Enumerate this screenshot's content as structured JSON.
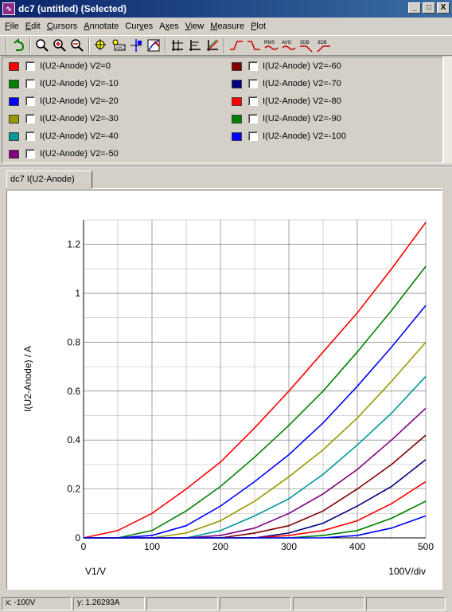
{
  "window": {
    "title": "dc7 (untitled) (Selected)",
    "icon_text": "∿",
    "buttons": {
      "minimize": "_",
      "maximize": "□",
      "close": "X"
    }
  },
  "menu": [
    {
      "label": "File",
      "u": "F"
    },
    {
      "label": "Edit",
      "u": "E"
    },
    {
      "label": "Cursors",
      "u": "C"
    },
    {
      "label": "Annotate",
      "u": "A"
    },
    {
      "label": "Curves",
      "u": "v"
    },
    {
      "label": "Axes",
      "u": "x"
    },
    {
      "label": "View",
      "u": "V"
    },
    {
      "label": "Measure",
      "u": "M"
    },
    {
      "label": "Plot",
      "u": "P"
    }
  ],
  "toolbar": {
    "icons": [
      "undo-icon",
      "zoom-full-icon",
      "zoom-in-icon",
      "zoom-out-icon",
      "cursor-icon",
      "annotate-abc-icon",
      "add-cursor-icon",
      "curve-pick-icon",
      "axes-icon",
      "grid-icon",
      "log-scale-icon",
      "rise-icon",
      "fall-icon",
      "rms-icon",
      "avg-icon",
      "3db-low-icon",
      "3db-high-icon"
    ],
    "rms_label": "RMS",
    "avg_label": "AVG",
    "db3_label": "3DB",
    "db3b_label": "3DB"
  },
  "legend": {
    "left": [
      {
        "label": "I(U2-Anode) V2=0",
        "color": "#ff0000"
      },
      {
        "label": "I(U2-Anode) V2=-10",
        "color": "#008000"
      },
      {
        "label": "I(U2-Anode) V2=-20",
        "color": "#0000ff"
      },
      {
        "label": "I(U2-Anode) V2=-30",
        "color": "#999900"
      },
      {
        "label": "I(U2-Anode) V2=-40",
        "color": "#009999"
      },
      {
        "label": "I(U2-Anode) V2=-50",
        "color": "#800080"
      }
    ],
    "right": [
      {
        "label": "I(U2-Anode) V2=-60",
        "color": "#800000"
      },
      {
        "label": "I(U2-Anode) V2=-70",
        "color": "#000080"
      },
      {
        "label": "I(U2-Anode) V2=-80",
        "color": "#ff0000"
      },
      {
        "label": "I(U2-Anode) V2=-90",
        "color": "#008000"
      },
      {
        "label": "I(U2-Anode) V2=-100",
        "color": "#0000ff"
      }
    ]
  },
  "tab": {
    "label": "dc7 I(U2-Anode)"
  },
  "status": {
    "x": "x: -100V",
    "y": "y: 1.26293A"
  },
  "chart_data": {
    "type": "line",
    "xlabel": "V1/V",
    "ylabel": "I(U2-Anode) / A",
    "x_scale_note": "100V/div",
    "xlim": [
      0,
      500
    ],
    "ylim": [
      0,
      1.3
    ],
    "x_ticks": [
      "0",
      "100",
      "200",
      "300",
      "400",
      "500"
    ],
    "y_ticks": [
      "0",
      "0.2",
      "0.4",
      "0.6",
      "0.8",
      "1",
      "1.2"
    ],
    "grid": true,
    "x": [
      0,
      50,
      100,
      150,
      200,
      250,
      300,
      350,
      400,
      450,
      500
    ],
    "series": [
      {
        "name": "I(U2-Anode) V2=0",
        "color": "#ff0000",
        "values": [
          0,
          0.03,
          0.1,
          0.2,
          0.31,
          0.45,
          0.6,
          0.76,
          0.92,
          1.1,
          1.29
        ]
      },
      {
        "name": "I(U2-Anode) V2=-10",
        "color": "#008000",
        "values": [
          0,
          0,
          0.03,
          0.11,
          0.21,
          0.33,
          0.46,
          0.6,
          0.76,
          0.93,
          1.11
        ]
      },
      {
        "name": "I(U2-Anode) V2=-20",
        "color": "#0000ff",
        "values": [
          0,
          0,
          0.01,
          0.05,
          0.13,
          0.23,
          0.34,
          0.47,
          0.62,
          0.78,
          0.95
        ]
      },
      {
        "name": "I(U2-Anode) V2=-30",
        "color": "#999900",
        "values": [
          0,
          0,
          0,
          0.02,
          0.07,
          0.15,
          0.25,
          0.36,
          0.49,
          0.64,
          0.8
        ]
      },
      {
        "name": "I(U2-Anode) V2=-40",
        "color": "#009999",
        "values": [
          0,
          0,
          0,
          0,
          0.03,
          0.09,
          0.16,
          0.26,
          0.38,
          0.51,
          0.66
        ]
      },
      {
        "name": "I(U2-Anode) V2=-50",
        "color": "#800080",
        "values": [
          0,
          0,
          0,
          0,
          0.01,
          0.04,
          0.1,
          0.18,
          0.28,
          0.4,
          0.53
        ]
      },
      {
        "name": "I(U2-Anode) V2=-60",
        "color": "#800000",
        "values": [
          0,
          0,
          0,
          0,
          0,
          0.02,
          0.05,
          0.11,
          0.2,
          0.3,
          0.42
        ]
      },
      {
        "name": "I(U2-Anode) V2=-70",
        "color": "#000080",
        "values": [
          0,
          0,
          0,
          0,
          0,
          0,
          0.02,
          0.06,
          0.13,
          0.21,
          0.32
        ]
      },
      {
        "name": "I(U2-Anode) V2=-80",
        "color": "#ff0000",
        "values": [
          0,
          0,
          0,
          0,
          0,
          0,
          0.01,
          0.03,
          0.07,
          0.14,
          0.23
        ]
      },
      {
        "name": "I(U2-Anode) V2=-90",
        "color": "#008000",
        "values": [
          0,
          0,
          0,
          0,
          0,
          0,
          0,
          0.01,
          0.03,
          0.08,
          0.15
        ]
      },
      {
        "name": "I(U2-Anode) V2=-100",
        "color": "#0000ff",
        "values": [
          0,
          0,
          0,
          0,
          0,
          0,
          0,
          0,
          0.01,
          0.04,
          0.09
        ]
      }
    ]
  }
}
